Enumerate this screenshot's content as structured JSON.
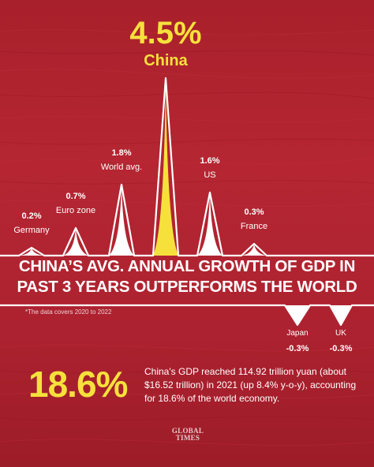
{
  "chart_data": {
    "type": "area",
    "title": "CHINA'S AVG. ANNUAL GROWTH OF GDP IN PAST 3 YEARS OUTPERFORMS THE WORLD",
    "title_lines": [
      "CHINA’S AVG. ANNUAL GROWTH OF GDP IN",
      "PAST 3 YEARS OUTPERFORMS THE WORLD"
    ],
    "note": "*The data covers 2020 to 2022",
    "unit": "%",
    "categories": [
      "Germany",
      "Euro zone",
      "World avg.",
      "China",
      "US",
      "France",
      "Japan",
      "UK"
    ],
    "values": [
      0.2,
      0.7,
      1.8,
      4.5,
      1.6,
      0.3,
      -0.3,
      -0.3
    ],
    "value_labels": [
      "0.2%",
      "0.7%",
      "1.8%",
      "4.5%",
      "1.6%",
      "0.3%",
      "-0.3%",
      "-0.3%"
    ],
    "highlight": "China",
    "colors": {
      "highlight": "#f6e13c",
      "peaks": "#ffffff",
      "background": "#ad2230"
    }
  },
  "footer": {
    "big_number": "18.6%",
    "description": "China's GDP reached 114.92 trillion yuan (about $16.52 trillion) in 2021 (up 8.4% y-o-y), accounting for 18.6% of the world economy.",
    "logo_lines": [
      "GLOBAL",
      "TIMES"
    ]
  }
}
